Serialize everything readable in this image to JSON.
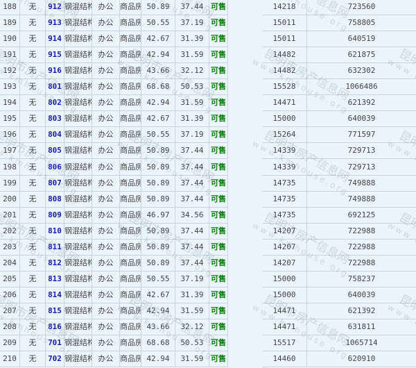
{
  "watermark": {
    "name": "昆明市房产信息网",
    "url": "www.kmhouse.org"
  },
  "colors": {
    "background": "#eaf5fb",
    "room_number": "#1a1aa8",
    "status": "#0a7a0a",
    "border": "#c9d3da"
  },
  "rows": [
    {
      "no": "188",
      "mark": "无",
      "room": "912",
      "structure": "钢混结构",
      "usage": "办公",
      "type": "商品房",
      "area": "50.89",
      "inner_area": "37.44",
      "status": "可售",
      "price": "14218",
      "total": "723560"
    },
    {
      "no": "189",
      "mark": "无",
      "room": "913",
      "structure": "钢混结构",
      "usage": "办公",
      "type": "商品房",
      "area": "50.55",
      "inner_area": "37.19",
      "status": "可售",
      "price": "15011",
      "total": "758805"
    },
    {
      "no": "190",
      "mark": "无",
      "room": "914",
      "structure": "钢混结构",
      "usage": "办公",
      "type": "商品房",
      "area": "42.67",
      "inner_area": "31.39",
      "status": "可售",
      "price": "15011",
      "total": "640519"
    },
    {
      "no": "191",
      "mark": "无",
      "room": "915",
      "structure": "钢混结构",
      "usage": "办公",
      "type": "商品房",
      "area": "42.94",
      "inner_area": "31.59",
      "status": "可售",
      "price": "14482",
      "total": "621875"
    },
    {
      "no": "192",
      "mark": "无",
      "room": "916",
      "structure": "钢混结构",
      "usage": "办公",
      "type": "商品房",
      "area": "43.66",
      "inner_area": "32.12",
      "status": "可售",
      "price": "14482",
      "total": "632302"
    },
    {
      "no": "193",
      "mark": "无",
      "room": "801",
      "structure": "钢混结构",
      "usage": "办公",
      "type": "商品房",
      "area": "68.68",
      "inner_area": "50.53",
      "status": "可售",
      "price": "15528",
      "total": "1066486"
    },
    {
      "no": "194",
      "mark": "无",
      "room": "802",
      "structure": "钢混结构",
      "usage": "办公",
      "type": "商品房",
      "area": "42.94",
      "inner_area": "31.59",
      "status": "可售",
      "price": "14471",
      "total": "621392"
    },
    {
      "no": "195",
      "mark": "无",
      "room": "803",
      "structure": "钢混结构",
      "usage": "办公",
      "type": "商品房",
      "area": "42.67",
      "inner_area": "31.39",
      "status": "可售",
      "price": "15000",
      "total": "640039"
    },
    {
      "no": "196",
      "mark": "无",
      "room": "804",
      "structure": "钢混结构",
      "usage": "办公",
      "type": "商品房",
      "area": "50.55",
      "inner_area": "37.19",
      "status": "可售",
      "price": "15264",
      "total": "771597"
    },
    {
      "no": "197",
      "mark": "无",
      "room": "805",
      "structure": "钢混结构",
      "usage": "办公",
      "type": "商品房",
      "area": "50.89",
      "inner_area": "37.44",
      "status": "可售",
      "price": "14339",
      "total": "729713"
    },
    {
      "no": "198",
      "mark": "无",
      "room": "806",
      "structure": "钢混结构",
      "usage": "办公",
      "type": "商品房",
      "area": "50.89",
      "inner_area": "37.44",
      "status": "可售",
      "price": "14339",
      "total": "729713"
    },
    {
      "no": "199",
      "mark": "无",
      "room": "807",
      "structure": "钢混结构",
      "usage": "办公",
      "type": "商品房",
      "area": "50.89",
      "inner_area": "37.44",
      "status": "可售",
      "price": "14735",
      "total": "749888"
    },
    {
      "no": "200",
      "mark": "无",
      "room": "808",
      "structure": "钢混结构",
      "usage": "办公",
      "type": "商品房",
      "area": "50.89",
      "inner_area": "37.44",
      "status": "可售",
      "price": "14735",
      "total": "749888"
    },
    {
      "no": "201",
      "mark": "无",
      "room": "809",
      "structure": "钢混结构",
      "usage": "办公",
      "type": "商品房",
      "area": "46.97",
      "inner_area": "34.56",
      "status": "可售",
      "price": "14735",
      "total": "692125"
    },
    {
      "no": "202",
      "mark": "无",
      "room": "810",
      "structure": "钢混结构",
      "usage": "办公",
      "type": "商品房",
      "area": "50.89",
      "inner_area": "37.44",
      "status": "可售",
      "price": "14207",
      "total": "722988"
    },
    {
      "no": "203",
      "mark": "无",
      "room": "811",
      "structure": "钢混结构",
      "usage": "办公",
      "type": "商品房",
      "area": "50.89",
      "inner_area": "37.44",
      "status": "可售",
      "price": "14207",
      "total": "722988"
    },
    {
      "no": "204",
      "mark": "无",
      "room": "812",
      "structure": "钢混结构",
      "usage": "办公",
      "type": "商品房",
      "area": "50.89",
      "inner_area": "37.44",
      "status": "可售",
      "price": "14207",
      "total": "722988"
    },
    {
      "no": "205",
      "mark": "无",
      "room": "813",
      "structure": "钢混结构",
      "usage": "办公",
      "type": "商品房",
      "area": "50.55",
      "inner_area": "37.19",
      "status": "可售",
      "price": "15000",
      "total": "758237"
    },
    {
      "no": "206",
      "mark": "无",
      "room": "814",
      "structure": "钢混结构",
      "usage": "办公",
      "type": "商品房",
      "area": "42.67",
      "inner_area": "31.39",
      "status": "可售",
      "price": "15000",
      "total": "640039"
    },
    {
      "no": "207",
      "mark": "无",
      "room": "815",
      "structure": "钢混结构",
      "usage": "办公",
      "type": "商品房",
      "area": "42.94",
      "inner_area": "31.59",
      "status": "可售",
      "price": "14471",
      "total": "621392"
    },
    {
      "no": "208",
      "mark": "无",
      "room": "816",
      "structure": "钢混结构",
      "usage": "办公",
      "type": "商品房",
      "area": "43.66",
      "inner_area": "32.12",
      "status": "可售",
      "price": "14471",
      "total": "631811"
    },
    {
      "no": "209",
      "mark": "无",
      "room": "701",
      "structure": "钢混结构",
      "usage": "办公",
      "type": "商品房",
      "area": "68.68",
      "inner_area": "50.53",
      "status": "可售",
      "price": "15517",
      "total": "1065714"
    },
    {
      "no": "210",
      "mark": "无",
      "room": "702",
      "structure": "钢混结构",
      "usage": "办公",
      "type": "商品房",
      "area": "42.94",
      "inner_area": "31.59",
      "status": "可售",
      "price": "14460",
      "total": "620910"
    }
  ]
}
